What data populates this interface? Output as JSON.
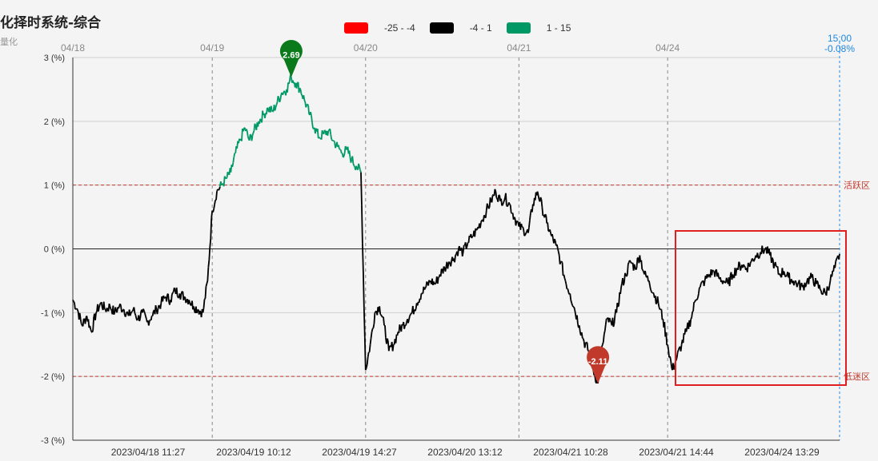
{
  "header": {
    "title": "化择时系统-综合",
    "subtitle": "量化"
  },
  "legend": [
    {
      "label": "-25 - -4",
      "color": "#ff0000"
    },
    {
      "label": "-4 - 1",
      "color": "#000000"
    },
    {
      "label": "1 - 15",
      "color": "#009966"
    }
  ],
  "chart_data": {
    "type": "line",
    "ylim": [
      -3,
      3
    ],
    "y_ticks": [
      "3 (%)",
      "2 (%)",
      "1 (%)",
      "0 (%)",
      "-1 (%)",
      "-2 (%)",
      "-3 (%)"
    ],
    "top_dates": [
      "04/18",
      "04/19",
      "04/20",
      "04/21",
      "04/24"
    ],
    "x_tick_labels": [
      "2023/04/18 11:27",
      "2023/04/19 10:12",
      "2023/04/19 14:27",
      "2023/04/20 13:12",
      "2023/04/21 10:28",
      "2023/04/21 14:44",
      "2023/04/24 13:29"
    ],
    "reference_lines": [
      {
        "value": 1,
        "label": "活跃区"
      },
      {
        "value": -2,
        "label": "低迷区"
      }
    ],
    "last_point": {
      "time": "15:00",
      "value": "-0.08%"
    },
    "max_marker": {
      "label": "2.69",
      "value": 2.69
    },
    "min_marker": {
      "label": "-2.11",
      "value": -2.11
    },
    "color_thresholds": [
      1
    ],
    "series": [
      {
        "values": [
          -0.8,
          -0.95,
          -1.2,
          -1.05,
          -1.3,
          -1.0,
          -0.85,
          -0.95,
          -0.9,
          -1.0,
          -0.9,
          -0.95,
          -1.05,
          -0.95,
          -1.1,
          -1.0,
          -1.15,
          -1.05,
          -0.95,
          -0.85,
          -0.75,
          -0.8,
          -0.65,
          -0.7,
          -0.75,
          -0.8,
          -0.9,
          -0.95,
          -1.0,
          -0.5,
          0.6,
          0.9,
          1.0,
          1.1,
          1.2,
          1.5,
          1.7,
          1.9,
          1.7,
          1.85,
          2.0,
          2.1,
          2.2,
          2.15,
          2.3,
          2.45,
          2.5,
          2.69,
          2.6,
          2.5,
          2.3,
          2.1,
          1.9,
          1.75,
          1.8,
          1.85,
          1.7,
          1.6,
          1.5,
          1.55,
          1.4,
          1.3,
          1.2,
          -1.9,
          -1.5,
          -1.0,
          -0.9,
          -1.2,
          -1.6,
          -1.5,
          -1.3,
          -1.2,
          -1.1,
          -1.0,
          -0.85,
          -0.7,
          -0.6,
          -0.5,
          -0.55,
          -0.4,
          -0.3,
          -0.2,
          -0.15,
          0.0,
          -0.05,
          0.1,
          0.2,
          0.3,
          0.45,
          0.6,
          0.75,
          0.9,
          0.75,
          0.8,
          0.7,
          0.5,
          0.35,
          0.3,
          0.25,
          0.7,
          0.9,
          0.65,
          0.4,
          0.2,
          0.05,
          -0.2,
          -0.5,
          -0.7,
          -0.95,
          -1.2,
          -1.45,
          -1.6,
          -1.9,
          -2.11,
          -1.5,
          -1.1,
          -1.2,
          -1.0,
          -0.6,
          -0.4,
          -0.2,
          -0.3,
          -0.1,
          -0.4,
          -0.5,
          -0.7,
          -0.85,
          -1.1,
          -1.5,
          -1.9,
          -1.7,
          -1.5,
          -1.3,
          -1.1,
          -0.8,
          -0.6,
          -0.5,
          -0.4,
          -0.35,
          -0.45,
          -0.5,
          -0.55,
          -0.4,
          -0.3,
          -0.25,
          -0.3,
          -0.2,
          -0.1,
          -0.05,
          0.0,
          -0.1,
          -0.25,
          -0.4,
          -0.35,
          -0.45,
          -0.5,
          -0.55,
          -0.6,
          -0.5,
          -0.45,
          -0.55,
          -0.65,
          -0.7,
          -0.5,
          -0.3,
          -0.08
        ]
      }
    ]
  }
}
